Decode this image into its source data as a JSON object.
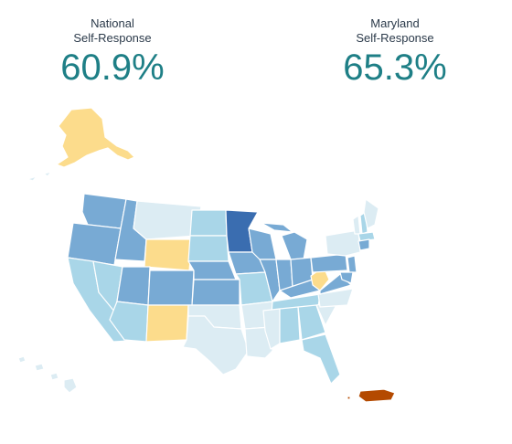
{
  "national": {
    "label_line1": "National",
    "label_line2": "Self-Response",
    "value": "60.9%"
  },
  "state": {
    "label_line1": "Maryland",
    "label_line2": "Self-Response",
    "value": "65.3%"
  },
  "colors": {
    "very_high": "#3a6db0",
    "high": "#78aad4",
    "mid": "#a9d6e8",
    "low": "#dcecf3",
    "below": "#fcdc8c",
    "lowest": "#b44a00",
    "value_text": "#1e7f86"
  }
}
